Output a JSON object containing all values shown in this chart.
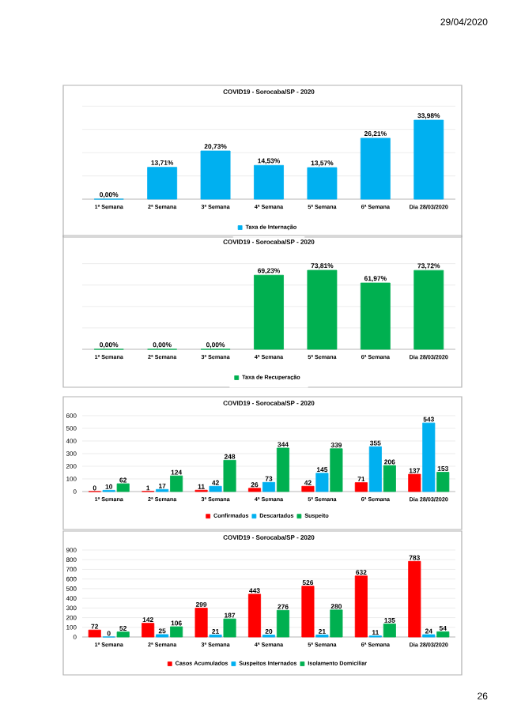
{
  "chart_data": [
    {
      "type": "bar",
      "title": "COVID19 - Sorocaba/SP - 2020",
      "categories": [
        "1ª Semana",
        "2ª Semana",
        "3ª Semana",
        "4ª Semana",
        "5ª Semana",
        "6ª Semana",
        "Dia 28/03/2020"
      ],
      "series": [
        {
          "name": "Taxa de Internação",
          "color": "#00b0f0",
          "values": [
            0.0,
            13.71,
            20.73,
            14.53,
            13.57,
            26.21,
            33.98
          ],
          "value_labels": [
            "0,00%",
            "13,71%",
            "20,73%",
            "14,53%",
            "13,57%",
            "26,21%",
            "33,98%"
          ]
        }
      ],
      "grid": "y",
      "legend": "bottom",
      "tick_labels": "x",
      "annotations": [
        "29/04/2020"
      ]
    },
    {
      "type": "bar",
      "title": "COVID19 - Sorocaba/SP - 2020",
      "categories": [
        "1ª Semana",
        "2ª Semana",
        "3ª Semana",
        "4ª Semana",
        "5ª Semana",
        "6ª Semana",
        "Dia 28/03/2020"
      ],
      "series": [
        {
          "name": "Taxa de Recuperação",
          "color": "#00b050",
          "values": [
            0.0,
            0.0,
            0.0,
            69.23,
            73.81,
            61.97,
            73.72
          ],
          "value_labels": [
            "0,00%",
            "0,00%",
            "0,00%",
            "69,23%",
            "73,81%",
            "61,97%",
            "73,72%"
          ]
        }
      ],
      "grid": "y",
      "legend": "bottom",
      "tick_labels": "x"
    },
    {
      "type": "bar",
      "title": "COVID19 - Sorocaba/SP - 2020",
      "categories": [
        "1ª Semana",
        "2ª Semana",
        "3ª Semana",
        "4ª Semana",
        "5ª Semana",
        "6ª Semana",
        "Dia 28/03/2020"
      ],
      "series": [
        {
          "name": "Confirmados",
          "color": "#ff0000",
          "values": [
            0,
            1,
            11,
            26,
            42,
            71,
            137
          ]
        },
        {
          "name": "Descartados",
          "color": "#00b0f0",
          "values": [
            10,
            17,
            42,
            73,
            145,
            355,
            543
          ]
        },
        {
          "name": "Suspeito",
          "color": "#00b050",
          "values": [
            62,
            124,
            248,
            344,
            339,
            206,
            153
          ]
        }
      ],
      "ylim": [
        0,
        600
      ],
      "yticks": [
        0,
        100,
        200,
        300,
        400,
        500,
        600
      ],
      "grid": "y",
      "legend": "bottom",
      "data_labels": true
    },
    {
      "type": "bar",
      "title": "COVID19 - Sorocaba/SP - 2020",
      "categories": [
        "1ª Semana",
        "2ª Semana",
        "3ª Semana",
        "4ª Semana",
        "5ª Semana",
        "6ª Semana",
        "Dia 28/03/2020"
      ],
      "series": [
        {
          "name": "Casos Acumulados",
          "color": "#ff0000",
          "values": [
            72,
            142,
            299,
            443,
            526,
            632,
            783
          ]
        },
        {
          "name": "Suspeitos Internados",
          "color": "#00b0f0",
          "values": [
            0,
            25,
            21,
            20,
            21,
            11,
            24
          ]
        },
        {
          "name": "Isolamento Domiciliar",
          "color": "#00b050",
          "values": [
            52,
            106,
            187,
            276,
            280,
            135,
            54
          ]
        }
      ],
      "ylim": [
        0,
        900
      ],
      "yticks": [
        0,
        100,
        200,
        300,
        400,
        500,
        600,
        700,
        800,
        900
      ],
      "grid": "y",
      "legend": "bottom",
      "data_labels": true,
      "annotations": [
        "26"
      ]
    }
  ]
}
